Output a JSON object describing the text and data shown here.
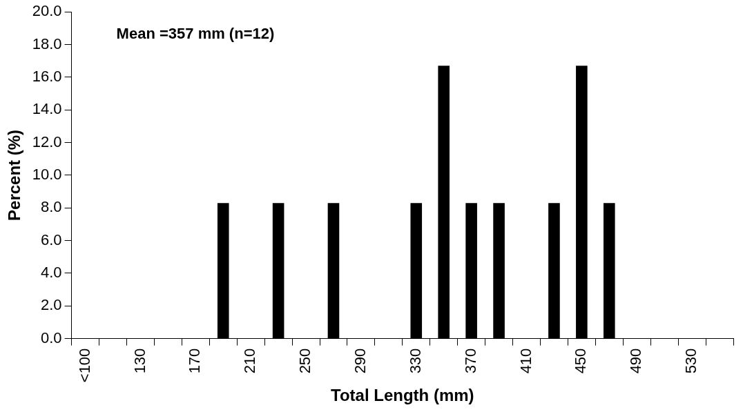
{
  "chart_data": {
    "type": "bar",
    "xlabel": "Total Length (mm)",
    "ylabel": "Percent (%)",
    "categories": [
      "<100",
      null,
      "130",
      null,
      "170",
      null,
      "210",
      null,
      "250",
      null,
      "290",
      null,
      "330",
      null,
      "370",
      null,
      "410",
      null,
      "450",
      null,
      "490",
      null,
      "530",
      null
    ],
    "values": [
      0,
      0,
      0,
      0,
      0,
      8.3,
      0,
      8.3,
      0,
      8.3,
      0,
      0,
      8.3,
      16.7,
      8.3,
      8.3,
      0,
      8.3,
      16.7,
      8.3,
      0,
      0,
      0,
      0
    ],
    "color": "#000000",
    "ylim": [
      0,
      20
    ],
    "yticks": [
      {
        "value": 0,
        "label": "0.0"
      },
      {
        "value": 2,
        "label": "2.0"
      },
      {
        "value": 4,
        "label": "4.0"
      },
      {
        "value": 6,
        "label": "6.0"
      },
      {
        "value": 8,
        "label": "8.0"
      },
      {
        "value": 10,
        "label": "10.0"
      },
      {
        "value": 12,
        "label": "12.0"
      },
      {
        "value": 14,
        "label": "14.0"
      },
      {
        "value": 16,
        "label": "16.0"
      },
      {
        "value": 18,
        "label": "18.0"
      },
      {
        "value": 20,
        "label": "20.0"
      }
    ],
    "annotations": [
      "Mean =357 mm (n=12)"
    ],
    "grid": false,
    "legend": false
  }
}
